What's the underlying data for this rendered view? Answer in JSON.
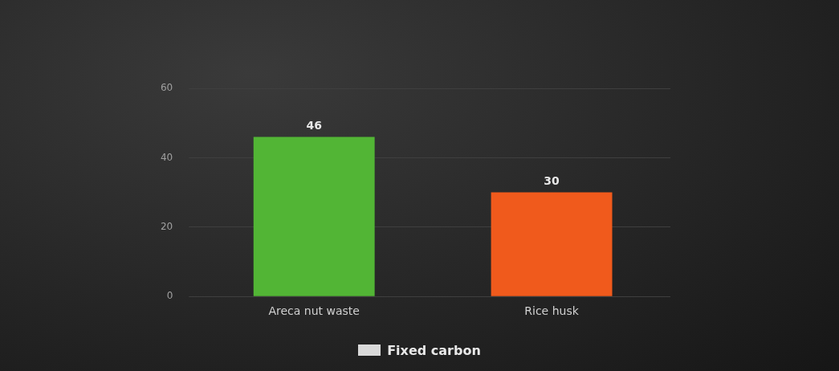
{
  "chart_data": {
    "type": "bar",
    "categories": [
      "Areca nut waste",
      "Rice husk"
    ],
    "series": [
      {
        "name": "Fixed carbon",
        "color": "#d9d9d9",
        "colors": [
          "#52b535",
          "#f05a1c"
        ],
        "values": [
          46,
          30
        ]
      }
    ],
    "ylim": [
      0,
      60
    ],
    "yticks": [
      0,
      20,
      40,
      60
    ],
    "grid": "y",
    "data_labels": true,
    "legend": "bottom"
  }
}
